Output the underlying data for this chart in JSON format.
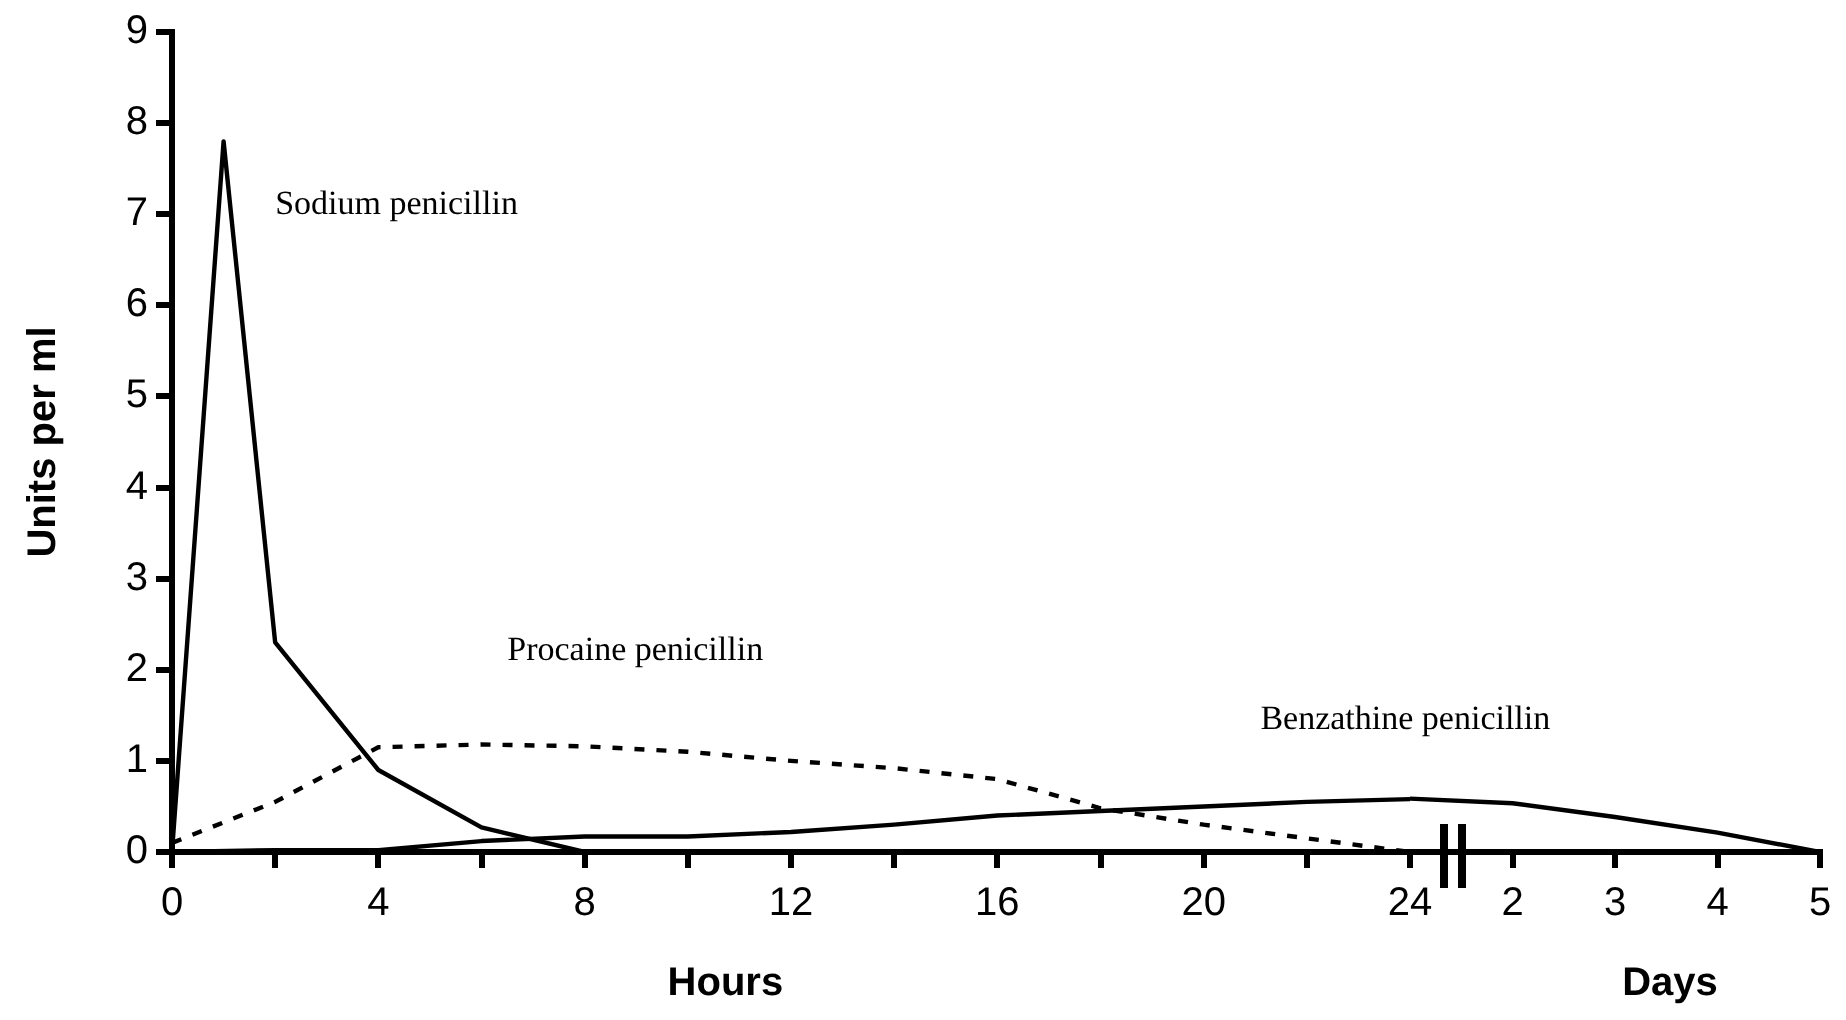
{
  "chart_data": [
    {
      "type": "line",
      "xlabel": "Hours",
      "ylabel": "Units per ml",
      "xlim": [
        0,
        24
      ],
      "ylim": [
        0,
        9
      ],
      "xticks": [
        0,
        {
          "value": 2,
          "label": null
        },
        4,
        {
          "value": 6,
          "label": null
        },
        8,
        {
          "value": 10,
          "label": null
        },
        12,
        {
          "value": 14,
          "label": null
        },
        16,
        {
          "value": 18,
          "label": null
        },
        20,
        {
          "value": 22,
          "label": null
        },
        24
      ],
      "yticks": [
        0,
        1,
        2,
        3,
        4,
        5,
        6,
        7,
        8,
        9
      ],
      "grid": false,
      "legend": false,
      "marker": "none",
      "series": [
        {
          "name": "Sodium penicillin",
          "color": "#000000",
          "line_style": "solid",
          "x": [
            0,
            1,
            2,
            4,
            6,
            8
          ],
          "values": [
            0,
            7.8,
            2.3,
            0.9,
            0.27,
            0
          ]
        },
        {
          "name": "Procaine penicillin",
          "color": "#000000",
          "line_style": "dashed",
          "x": [
            0,
            2,
            4,
            6,
            8,
            10,
            12,
            14,
            16,
            18,
            20,
            22,
            24
          ],
          "values": [
            0.1,
            0.55,
            1.15,
            1.18,
            1.16,
            1.1,
            1.0,
            0.92,
            0.8,
            0.48,
            0.3,
            0.15,
            0
          ]
        },
        {
          "name": "Benzathine penicillin",
          "color": "#000000",
          "line_style": "solid",
          "x": [
            0,
            2,
            4,
            6,
            8,
            10,
            12,
            14,
            16,
            18,
            20,
            22,
            24
          ],
          "values": [
            0,
            0.02,
            0.02,
            0.12,
            0.17,
            0.17,
            0.22,
            0.3,
            0.4,
            0.45,
            0.5,
            0.55,
            0.58
          ]
        }
      ]
    },
    {
      "type": "line",
      "xlabel": "Days",
      "tick_labels": "x",
      "xlim": [
        1,
        5
      ],
      "ylim": [
        0,
        9
      ],
      "xticks": [
        2,
        3,
        4,
        5
      ],
      "yticks": [
        0,
        1,
        2,
        3,
        4,
        5,
        6,
        7,
        8,
        9
      ],
      "grid": false,
      "legend": false,
      "marker": "none",
      "series": [
        {
          "color": "#000000",
          "line_style": "solid",
          "x": [
            1,
            2,
            3,
            4,
            5
          ],
          "values": [
            0.58,
            0.53,
            0.38,
            0.21,
            0
          ]
        }
      ]
    }
  ]
}
